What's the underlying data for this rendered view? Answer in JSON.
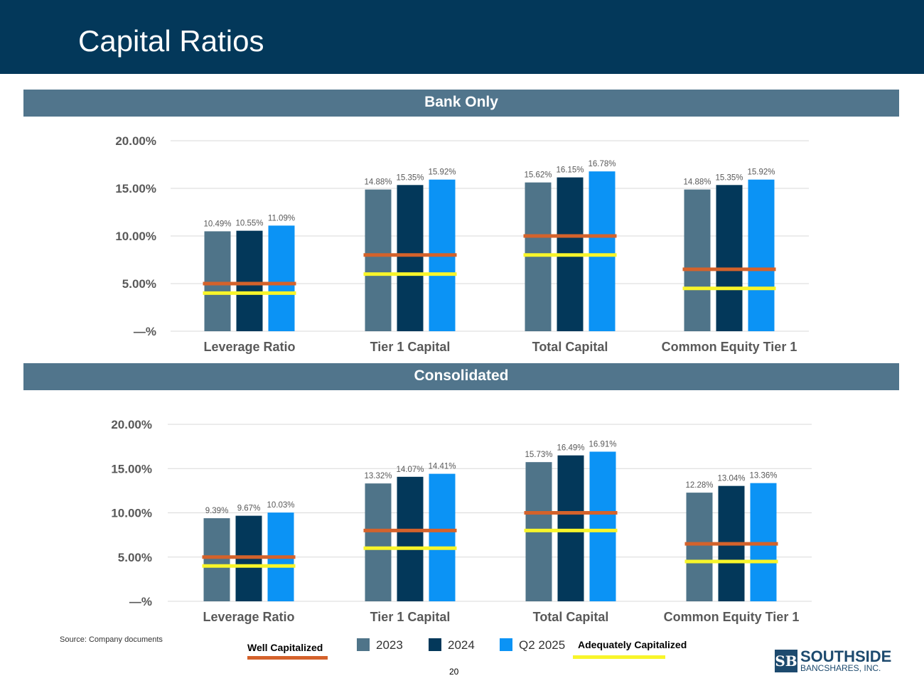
{
  "title": "Capital Ratios",
  "source": "Source: Company documents",
  "page_number": "20",
  "logo": {
    "mark": "SB",
    "name": "SOUTHSIDE",
    "subtitle": "BANCSHARES, INC."
  },
  "legend": {
    "well_capitalized": "Well Capitalized",
    "adequately_capitalized": "Adequately Capitalized",
    "series": [
      "2023",
      "2024",
      "Q2 2025"
    ]
  },
  "colors": {
    "2023": "#4f7489",
    "2024": "#03385a",
    "Q2 2025": "#0b93f5",
    "well_capitalized": "#d4622b",
    "adequately_capitalized": "#f8f52a"
  },
  "chart_data": [
    {
      "type": "bar",
      "title": "Bank Only",
      "categories": [
        "Leverage Ratio",
        "Tier 1 Capital",
        "Total Capital",
        "Common Equity Tier 1"
      ],
      "series": [
        {
          "name": "2023",
          "values": [
            10.49,
            14.88,
            15.62,
            14.88
          ]
        },
        {
          "name": "2024",
          "values": [
            10.55,
            15.35,
            16.15,
            15.35
          ]
        },
        {
          "name": "Q2 2025",
          "values": [
            11.09,
            15.92,
            16.78,
            15.92
          ]
        }
      ],
      "data_labels": [
        [
          "10.49%",
          "14.88%",
          "15.62%",
          "14.88%"
        ],
        [
          "10.55%",
          "15.35%",
          "16.15%",
          "15.35%"
        ],
        [
          "11.09%",
          "15.92%",
          "16.78%",
          "15.92%"
        ]
      ],
      "thresholds": {
        "well_capitalized": [
          5.0,
          8.0,
          10.0,
          6.5
        ],
        "adequately_capitalized": [
          4.0,
          6.0,
          8.0,
          4.5
        ]
      },
      "yticks": [
        "—%",
        "5.00%",
        "10.00%",
        "15.00%",
        "20.00%"
      ],
      "ytick_values": [
        0,
        5,
        10,
        15,
        20
      ],
      "ylim": [
        0,
        20
      ],
      "grid": true
    },
    {
      "type": "bar",
      "title": "Consolidated",
      "categories": [
        "Leverage Ratio",
        "Tier 1 Capital",
        "Total Capital",
        "Common Equity Tier 1"
      ],
      "series": [
        {
          "name": "2023",
          "values": [
            9.39,
            13.32,
            15.73,
            12.28
          ]
        },
        {
          "name": "2024",
          "values": [
            9.67,
            14.07,
            16.49,
            13.04
          ]
        },
        {
          "name": "Q2 2025",
          "values": [
            10.03,
            14.41,
            16.91,
            13.36
          ]
        }
      ],
      "data_labels": [
        [
          "9.39%",
          "13.32%",
          "15.73%",
          "12.28%"
        ],
        [
          "9.67%",
          "14.07%",
          "16.49%",
          "13.04%"
        ],
        [
          "10.03%",
          "14.41%",
          "16.91%",
          "13.36%"
        ]
      ],
      "thresholds": {
        "well_capitalized": [
          5.0,
          8.0,
          10.0,
          6.5
        ],
        "adequately_capitalized": [
          4.0,
          6.0,
          8.0,
          4.5
        ]
      },
      "yticks": [
        "—%",
        "5.00%",
        "10.00%",
        "15.00%",
        "20.00%"
      ],
      "ytick_values": [
        0,
        5,
        10,
        15,
        20
      ],
      "ylim": [
        0,
        20
      ],
      "grid": true
    }
  ]
}
